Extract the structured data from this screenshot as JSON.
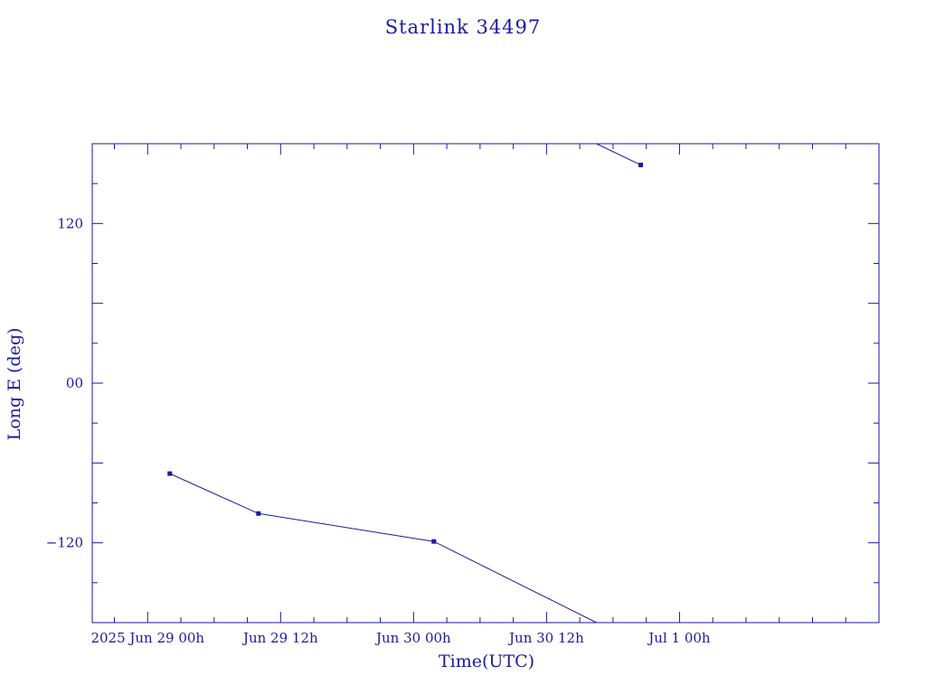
{
  "chart_data": {
    "type": "line",
    "title": "Starlink 34497",
    "xlabel": "Time(UTC)",
    "ylabel": "Long E (deg)",
    "xlim": [
      "2025-06-28T19:00",
      "2025-07-01T18:00"
    ],
    "ylim": [
      -180,
      180
    ],
    "x_ticks": [
      {
        "t": "2025-06-29T00:00",
        "label": "2025 Jun 29  00h"
      },
      {
        "t": "2025-06-29T12:00",
        "label": "Jun 29  12h"
      },
      {
        "t": "2025-06-30T00:00",
        "label": "Jun 30  00h"
      },
      {
        "t": "2025-06-30T12:00",
        "label": "Jun 30  12h"
      },
      {
        "t": "2025-07-01T00:00",
        "label": "Jul  1  00h"
      }
    ],
    "y_ticks": [
      {
        "v": 120,
        "label": "120"
      },
      {
        "v": 0,
        "label": "00"
      },
      {
        "v": -120,
        "label": "−120"
      }
    ],
    "series": [
      {
        "points": [
          {
            "t": "2025-06-29T02:00",
            "y": -68
          },
          {
            "t": "2025-06-29T10:00",
            "y": -98
          },
          {
            "t": "2025-06-30T01:50",
            "y": -119
          },
          {
            "t": "2025-06-30T16:30",
            "y": -180
          },
          {
            "t": "2025-06-30T16:30",
            "y": 180
          },
          {
            "t": "2025-06-30T20:30",
            "y": 164
          }
        ],
        "markers": [
          true,
          true,
          true,
          false,
          false,
          true
        ],
        "break_after_index": 3
      }
    ],
    "grid": false,
    "legend": "none"
  }
}
